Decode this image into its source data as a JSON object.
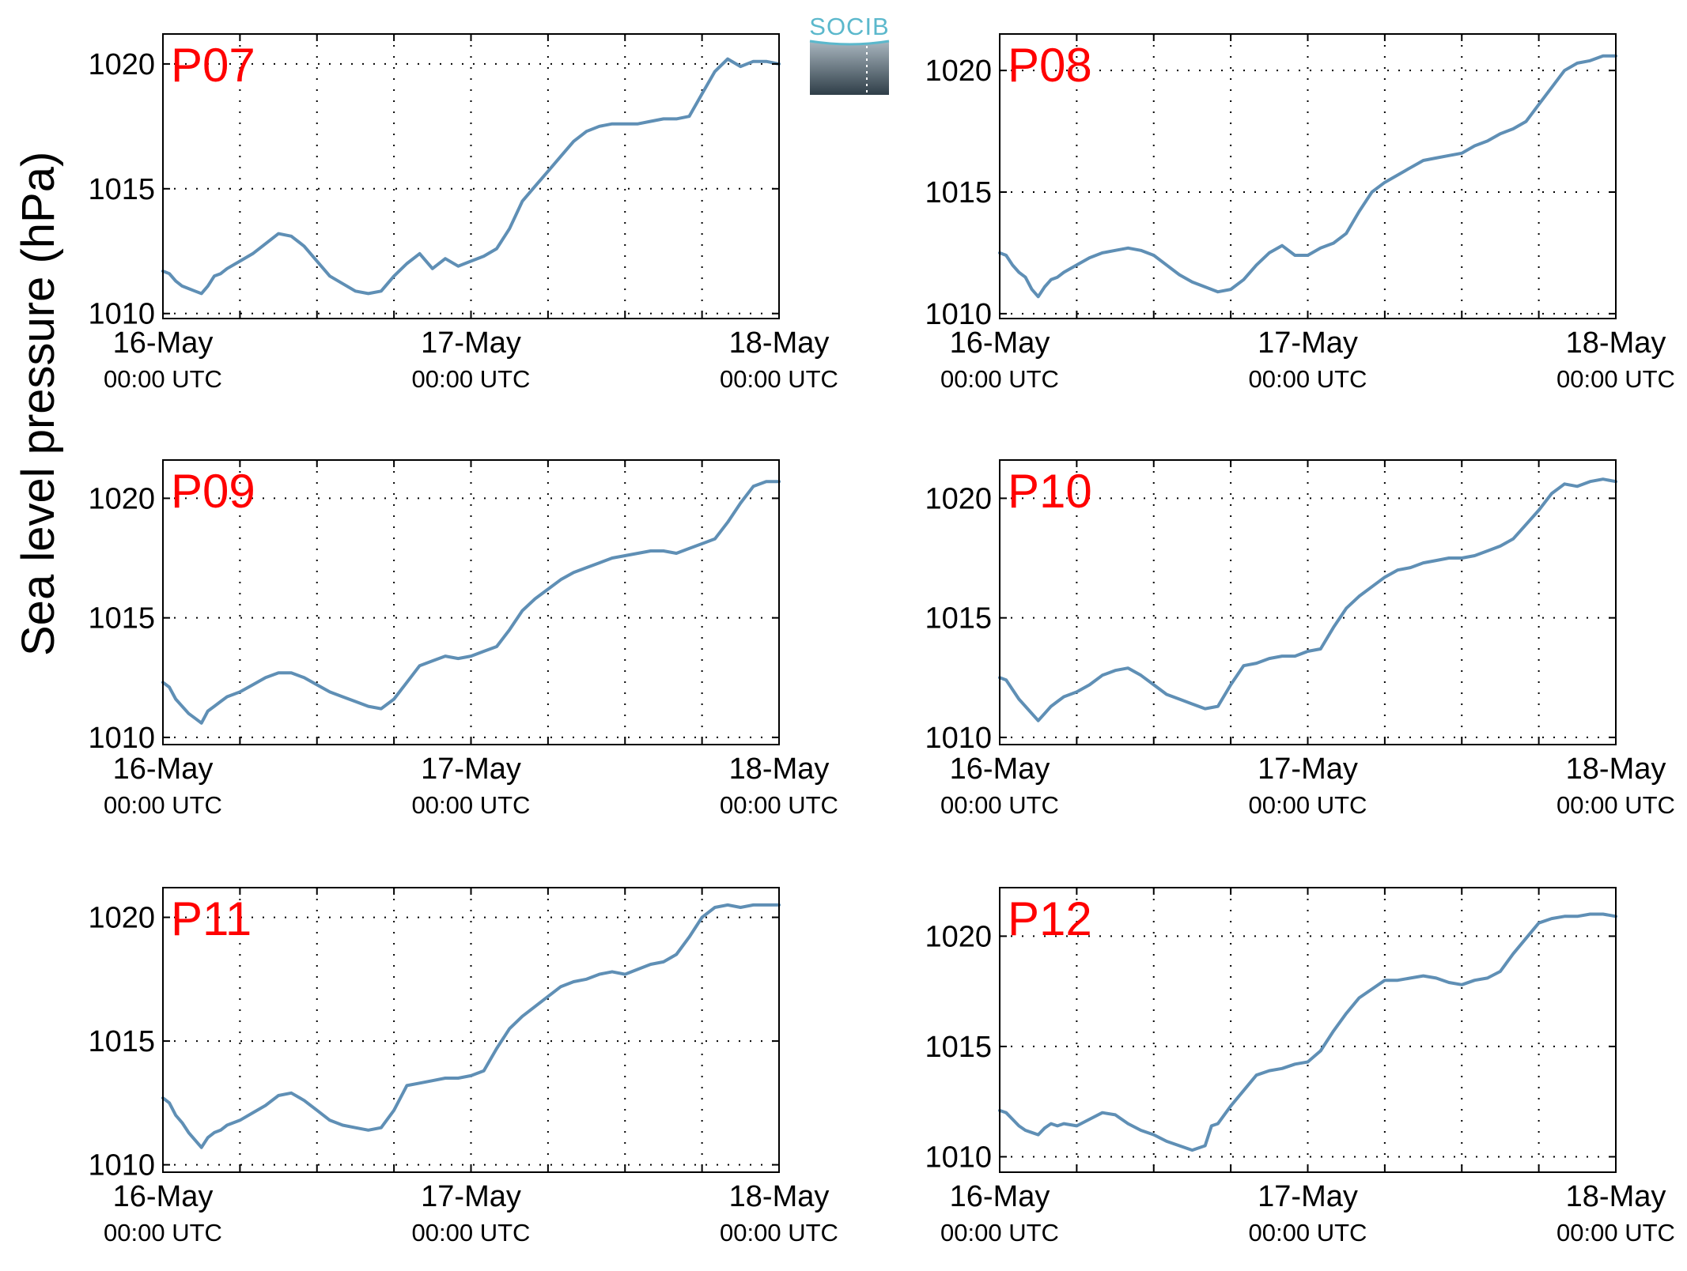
{
  "figure": {
    "ylabel": "Sea level pressure (hPa)",
    "logo_text": "SOCIB",
    "colors": {
      "line": "#5f8fb5",
      "title": "#ff0000",
      "axis": "#000000",
      "grid": "#000000"
    }
  },
  "chart_data": [
    {
      "type": "line",
      "title": "P07",
      "x_tick_labels": [
        [
          "16-May",
          "00:00 UTC"
        ],
        [
          "17-May",
          "00:00 UTC"
        ],
        [
          "18-May",
          "00:00 UTC"
        ]
      ],
      "xlim": [
        0,
        48
      ],
      "ylim": [
        1009.8,
        1021.2
      ],
      "yticks": [
        1010,
        1015,
        1020
      ],
      "grid": true,
      "x_unit": "hours since 16-May 00:00 UTC",
      "x": [
        0,
        0.5,
        1,
        1.5,
        2,
        2.5,
        3,
        3.5,
        4,
        4.5,
        5,
        6,
        7,
        8,
        9,
        10,
        11,
        12,
        13,
        14,
        15,
        16,
        17,
        18,
        19,
        20,
        21,
        22,
        23,
        24,
        25,
        26,
        27,
        28,
        29,
        30,
        31,
        32,
        33,
        34,
        35,
        36,
        37,
        38,
        39,
        40,
        41,
        42,
        43,
        44,
        45,
        46,
        47,
        48
      ],
      "y": [
        1011.7,
        1011.6,
        1011.3,
        1011.1,
        1011.0,
        1010.9,
        1010.8,
        1011.1,
        1011.5,
        1011.6,
        1011.8,
        1012.1,
        1012.4,
        1012.8,
        1013.2,
        1013.1,
        1012.7,
        1012.1,
        1011.5,
        1011.2,
        1010.9,
        1010.8,
        1010.9,
        1011.5,
        1012.0,
        1012.4,
        1011.8,
        1012.2,
        1011.9,
        1012.1,
        1012.3,
        1012.6,
        1013.4,
        1014.5,
        1015.1,
        1015.7,
        1016.3,
        1016.9,
        1017.3,
        1017.5,
        1017.6,
        1017.6,
        1017.6,
        1017.7,
        1017.8,
        1017.8,
        1017.9,
        1018.8,
        1019.7,
        1020.2,
        1019.9,
        1020.1,
        1020.1,
        1020.0
      ]
    },
    {
      "type": "line",
      "title": "P08",
      "x_tick_labels": [
        [
          "16-May",
          "00:00 UTC"
        ],
        [
          "17-May",
          "00:00 UTC"
        ],
        [
          "18-May",
          "00:00 UTC"
        ]
      ],
      "xlim": [
        0,
        48
      ],
      "ylim": [
        1009.8,
        1021.5
      ],
      "yticks": [
        1010,
        1015,
        1020
      ],
      "grid": true,
      "x_unit": "hours since 16-May 00:00 UTC",
      "x": [
        0,
        0.5,
        1,
        1.5,
        2,
        2.5,
        3,
        3.5,
        4,
        4.5,
        5,
        6,
        7,
        8,
        9,
        10,
        11,
        12,
        13,
        14,
        15,
        16,
        17,
        18,
        19,
        20,
        21,
        22,
        23,
        24,
        25,
        26,
        27,
        28,
        29,
        30,
        31,
        32,
        33,
        34,
        35,
        36,
        37,
        38,
        39,
        40,
        41,
        42,
        43,
        44,
        45,
        46,
        47,
        48
      ],
      "y": [
        1012.5,
        1012.4,
        1012.0,
        1011.7,
        1011.5,
        1011.0,
        1010.7,
        1011.1,
        1011.4,
        1011.5,
        1011.7,
        1012.0,
        1012.3,
        1012.5,
        1012.6,
        1012.7,
        1012.6,
        1012.4,
        1012.0,
        1011.6,
        1011.3,
        1011.1,
        1010.9,
        1011.0,
        1011.4,
        1012.0,
        1012.5,
        1012.8,
        1012.4,
        1012.4,
        1012.7,
        1012.9,
        1013.3,
        1014.2,
        1015.0,
        1015.4,
        1015.7,
        1016.0,
        1016.3,
        1016.4,
        1016.5,
        1016.6,
        1016.9,
        1017.1,
        1017.4,
        1017.6,
        1017.9,
        1018.6,
        1019.3,
        1020.0,
        1020.3,
        1020.4,
        1020.6,
        1020.6
      ]
    },
    {
      "type": "line",
      "title": "P09",
      "x_tick_labels": [
        [
          "16-May",
          "00:00 UTC"
        ],
        [
          "17-May",
          "00:00 UTC"
        ],
        [
          "18-May",
          "00:00 UTC"
        ]
      ],
      "xlim": [
        0,
        48
      ],
      "ylim": [
        1009.7,
        1021.6
      ],
      "yticks": [
        1010,
        1015,
        1020
      ],
      "grid": true,
      "x_unit": "hours since 16-May 00:00 UTC",
      "x": [
        0,
        0.5,
        1,
        1.5,
        2,
        2.5,
        3,
        3.5,
        4,
        4.5,
        5,
        6,
        7,
        8,
        9,
        10,
        11,
        12,
        13,
        14,
        15,
        16,
        17,
        18,
        19,
        20,
        21,
        22,
        23,
        24,
        25,
        26,
        27,
        28,
        29,
        30,
        31,
        32,
        33,
        34,
        35,
        36,
        37,
        38,
        39,
        40,
        41,
        42,
        43,
        44,
        45,
        46,
        47,
        48
      ],
      "y": [
        1012.3,
        1012.1,
        1011.6,
        1011.3,
        1011.0,
        1010.8,
        1010.6,
        1011.1,
        1011.3,
        1011.5,
        1011.7,
        1011.9,
        1012.2,
        1012.5,
        1012.7,
        1012.7,
        1012.5,
        1012.2,
        1011.9,
        1011.7,
        1011.5,
        1011.3,
        1011.2,
        1011.6,
        1012.3,
        1013.0,
        1013.2,
        1013.4,
        1013.3,
        1013.4,
        1013.6,
        1013.8,
        1014.5,
        1015.3,
        1015.8,
        1016.2,
        1016.6,
        1016.9,
        1017.1,
        1017.3,
        1017.5,
        1017.6,
        1017.7,
        1017.8,
        1017.8,
        1017.7,
        1017.9,
        1018.1,
        1018.3,
        1019.0,
        1019.8,
        1020.5,
        1020.7,
        1020.7
      ]
    },
    {
      "type": "line",
      "title": "P10",
      "x_tick_labels": [
        [
          "16-May",
          "00:00 UTC"
        ],
        [
          "17-May",
          "00:00 UTC"
        ],
        [
          "18-May",
          "00:00 UTC"
        ]
      ],
      "xlim": [
        0,
        48
      ],
      "ylim": [
        1009.7,
        1021.6
      ],
      "yticks": [
        1010,
        1015,
        1020
      ],
      "grid": true,
      "x_unit": "hours since 16-May 00:00 UTC",
      "x": [
        0,
        0.5,
        1,
        1.5,
        2,
        2.5,
        3,
        3.5,
        4,
        4.5,
        5,
        6,
        7,
        8,
        9,
        10,
        11,
        12,
        13,
        14,
        15,
        16,
        17,
        18,
        19,
        20,
        21,
        22,
        23,
        24,
        25,
        26,
        27,
        28,
        29,
        30,
        31,
        32,
        33,
        34,
        35,
        36,
        37,
        38,
        39,
        40,
        41,
        42,
        43,
        44,
        45,
        46,
        47,
        48
      ],
      "y": [
        1012.5,
        1012.4,
        1012.0,
        1011.6,
        1011.3,
        1011.0,
        1010.7,
        1011.0,
        1011.3,
        1011.5,
        1011.7,
        1011.9,
        1012.2,
        1012.6,
        1012.8,
        1012.9,
        1012.6,
        1012.2,
        1011.8,
        1011.6,
        1011.4,
        1011.2,
        1011.3,
        1012.2,
        1013.0,
        1013.1,
        1013.3,
        1013.4,
        1013.4,
        1013.6,
        1013.7,
        1014.6,
        1015.4,
        1015.9,
        1016.3,
        1016.7,
        1017.0,
        1017.1,
        1017.3,
        1017.4,
        1017.5,
        1017.5,
        1017.6,
        1017.8,
        1018.0,
        1018.3,
        1018.9,
        1019.5,
        1020.2,
        1020.6,
        1020.5,
        1020.7,
        1020.8,
        1020.7
      ]
    },
    {
      "type": "line",
      "title": "P11",
      "x_tick_labels": [
        [
          "16-May",
          "00:00 UTC"
        ],
        [
          "17-May",
          "00:00 UTC"
        ],
        [
          "18-May",
          "00:00 UTC"
        ]
      ],
      "xlim": [
        0,
        48
      ],
      "ylim": [
        1009.7,
        1021.2
      ],
      "yticks": [
        1010,
        1015,
        1020
      ],
      "grid": true,
      "x_unit": "hours since 16-May 00:00 UTC",
      "x": [
        0,
        0.5,
        1,
        1.5,
        2,
        2.5,
        3,
        3.5,
        4,
        4.5,
        5,
        6,
        7,
        8,
        9,
        10,
        11,
        12,
        13,
        14,
        15,
        16,
        17,
        18,
        19,
        20,
        21,
        22,
        23,
        24,
        25,
        26,
        27,
        28,
        29,
        30,
        31,
        32,
        33,
        34,
        35,
        36,
        37,
        38,
        39,
        40,
        41,
        42,
        43,
        44,
        45,
        46,
        47,
        48
      ],
      "y": [
        1012.7,
        1012.5,
        1012.0,
        1011.7,
        1011.3,
        1011.0,
        1010.7,
        1011.1,
        1011.3,
        1011.4,
        1011.6,
        1011.8,
        1012.1,
        1012.4,
        1012.8,
        1012.9,
        1012.6,
        1012.2,
        1011.8,
        1011.6,
        1011.5,
        1011.4,
        1011.5,
        1012.2,
        1013.2,
        1013.3,
        1013.4,
        1013.5,
        1013.5,
        1013.6,
        1013.8,
        1014.7,
        1015.5,
        1016.0,
        1016.4,
        1016.8,
        1017.2,
        1017.4,
        1017.5,
        1017.7,
        1017.8,
        1017.7,
        1017.9,
        1018.1,
        1018.2,
        1018.5,
        1019.2,
        1020.0,
        1020.4,
        1020.5,
        1020.4,
        1020.5,
        1020.5,
        1020.5
      ]
    },
    {
      "type": "line",
      "title": "P12",
      "x_tick_labels": [
        [
          "16-May",
          "00:00 UTC"
        ],
        [
          "17-May",
          "00:00 UTC"
        ],
        [
          "18-May",
          "00:00 UTC"
        ]
      ],
      "xlim": [
        0,
        48
      ],
      "ylim": [
        1009.3,
        1022.2
      ],
      "yticks": [
        1010,
        1015,
        1020
      ],
      "grid": true,
      "x_unit": "hours since 16-May 00:00 UTC",
      "x": [
        0,
        0.5,
        1,
        1.5,
        2,
        2.5,
        3,
        3.5,
        4,
        4.5,
        5,
        6,
        7,
        8,
        9,
        10,
        11,
        12,
        13,
        14,
        15,
        16,
        16.5,
        17,
        18,
        19,
        20,
        21,
        22,
        23,
        24,
        25,
        26,
        27,
        28,
        29,
        30,
        31,
        32,
        33,
        34,
        35,
        36,
        37,
        38,
        39,
        40,
        41,
        42,
        43,
        44,
        45,
        46,
        47,
        48
      ],
      "y": [
        1012.1,
        1012.0,
        1011.7,
        1011.4,
        1011.2,
        1011.1,
        1011.0,
        1011.3,
        1011.5,
        1011.4,
        1011.5,
        1011.4,
        1011.7,
        1012.0,
        1011.9,
        1011.5,
        1011.2,
        1011.0,
        1010.7,
        1010.5,
        1010.3,
        1010.5,
        1011.4,
        1011.5,
        1012.3,
        1013.0,
        1013.7,
        1013.9,
        1014.0,
        1014.2,
        1014.3,
        1014.8,
        1015.7,
        1016.5,
        1017.2,
        1017.6,
        1018.0,
        1018.0,
        1018.1,
        1018.2,
        1018.1,
        1017.9,
        1017.8,
        1018.0,
        1018.1,
        1018.4,
        1019.2,
        1019.9,
        1020.6,
        1020.8,
        1020.9,
        1020.9,
        1021.0,
        1021.0,
        1020.9
      ]
    }
  ]
}
